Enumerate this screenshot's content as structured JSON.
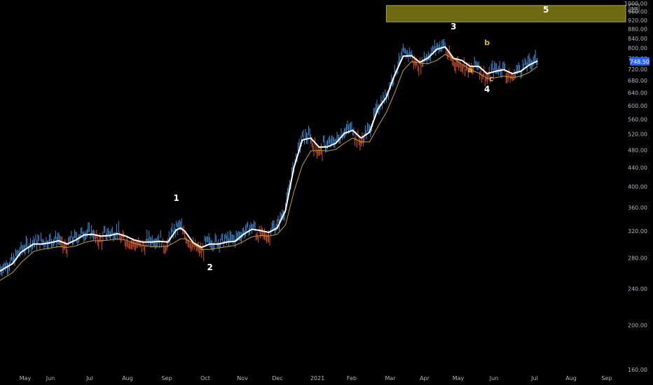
{
  "chart_data": {
    "type": "line",
    "title": "",
    "currency": "INR",
    "last_price": "748.50",
    "y_scale": "log",
    "ylim": [
      160,
      1000
    ],
    "yticks": [
      "1000.00",
      "960.00",
      "920.00",
      "880.00",
      "840.00",
      "800.00",
      "760.00",
      "720.00",
      "680.00",
      "640.00",
      "600.00",
      "560.00",
      "520.00",
      "480.00",
      "440.00",
      "400.00",
      "360.00",
      "320.00",
      "280.00",
      "240.00",
      "200.00",
      "160.00"
    ],
    "month_labels": [
      "May",
      "Jun",
      "Jul",
      "Aug",
      "Sep",
      "Oct",
      "Nov",
      "Dec",
      "2021",
      "Feb",
      "Mar",
      "Apr",
      "May",
      "Jun",
      "Jul",
      "Aug",
      "Sep"
    ],
    "grid": false,
    "series": [
      {
        "values": [
          [
            0,
            262
          ],
          [
            3,
            272
          ],
          [
            5,
            288
          ],
          [
            8,
            300
          ],
          [
            10,
            300
          ],
          [
            12,
            302
          ],
          [
            14,
            305
          ],
          [
            16,
            300
          ],
          [
            18,
            306
          ],
          [
            20,
            314
          ],
          [
            22,
            315
          ],
          [
            24,
            312
          ],
          [
            26,
            313
          ],
          [
            28,
            316
          ],
          [
            30,
            312
          ],
          [
            32,
            306
          ],
          [
            34,
            303
          ],
          [
            36,
            303
          ],
          [
            38,
            304
          ],
          [
            40,
            303
          ],
          [
            42,
            322
          ],
          [
            43,
            325
          ],
          [
            44,
            320
          ],
          [
            46,
            302
          ],
          [
            48,
            295
          ],
          [
            50,
            300
          ],
          [
            52,
            300
          ],
          [
            54,
            303
          ],
          [
            56,
            304
          ],
          [
            58,
            315
          ],
          [
            60,
            323
          ],
          [
            62,
            321
          ],
          [
            64,
            318
          ],
          [
            66,
            325
          ],
          [
            68,
            355
          ],
          [
            70,
            440
          ],
          [
            72,
            505
          ],
          [
            74,
            510
          ],
          [
            76,
            487
          ],
          [
            78,
            488
          ],
          [
            80,
            497
          ],
          [
            82,
            522
          ],
          [
            84,
            530
          ],
          [
            86,
            510
          ],
          [
            88,
            525
          ],
          [
            90,
            590
          ],
          [
            92,
            625
          ],
          [
            94,
            700
          ],
          [
            96,
            768
          ],
          [
            98,
            770
          ],
          [
            100,
            745
          ],
          [
            102,
            762
          ],
          [
            104,
            795
          ],
          [
            106,
            805
          ],
          [
            108,
            760
          ],
          [
            110,
            752
          ],
          [
            112,
            730
          ],
          [
            114,
            730
          ],
          [
            116,
            704
          ],
          [
            118,
            712
          ],
          [
            120,
            718
          ],
          [
            122,
            704
          ],
          [
            124,
            712
          ],
          [
            126,
            735
          ],
          [
            128,
            750
          ]
        ]
      },
      {
        "values": [
          [
            0,
            250
          ],
          [
            3,
            260
          ],
          [
            5,
            273
          ],
          [
            8,
            289
          ],
          [
            10,
            292
          ],
          [
            12,
            294
          ],
          [
            14,
            296
          ],
          [
            16,
            295
          ],
          [
            18,
            297
          ],
          [
            20,
            302
          ],
          [
            22,
            305
          ],
          [
            24,
            305
          ],
          [
            26,
            306
          ],
          [
            28,
            308
          ],
          [
            30,
            306
          ],
          [
            32,
            301
          ],
          [
            34,
            298
          ],
          [
            36,
            296
          ],
          [
            38,
            296
          ],
          [
            40,
            297
          ],
          [
            42,
            304
          ],
          [
            43,
            308
          ],
          [
            44,
            308
          ],
          [
            46,
            301
          ],
          [
            48,
            292
          ],
          [
            50,
            292
          ],
          [
            52,
            294
          ],
          [
            54,
            296
          ],
          [
            56,
            298
          ],
          [
            58,
            304
          ],
          [
            60,
            311
          ],
          [
            62,
            313
          ],
          [
            64,
            312
          ],
          [
            66,
            315
          ],
          [
            68,
            330
          ],
          [
            70,
            390
          ],
          [
            72,
            445
          ],
          [
            74,
            478
          ],
          [
            76,
            480
          ],
          [
            78,
            478
          ],
          [
            80,
            482
          ],
          [
            82,
            497
          ],
          [
            84,
            510
          ],
          [
            86,
            500
          ],
          [
            88,
            500
          ],
          [
            90,
            540
          ],
          [
            92,
            580
          ],
          [
            94,
            640
          ],
          [
            96,
            715
          ],
          [
            98,
            748
          ],
          [
            100,
            742
          ],
          [
            102,
            740
          ],
          [
            104,
            752
          ],
          [
            106,
            775
          ],
          [
            108,
            758
          ],
          [
            110,
            738
          ],
          [
            112,
            718
          ],
          [
            114,
            706
          ],
          [
            116,
            688
          ],
          [
            118,
            690
          ],
          [
            120,
            695
          ],
          [
            122,
            690
          ],
          [
            124,
            695
          ],
          [
            126,
            708
          ],
          [
            128,
            730
          ]
        ]
      }
    ],
    "annotations": [
      {
        "text": "1",
        "at": [
          42,
          372
        ],
        "color": "#ffffff"
      },
      {
        "text": "2",
        "at": [
          50,
          263
        ],
        "color": "#ffffff"
      },
      {
        "text": "3",
        "at": [
          108,
          878
        ],
        "color": "#ffffff"
      },
      {
        "text": "4",
        "at": [
          116,
          642
        ],
        "color": "#ffffff"
      },
      {
        "text": "5",
        "at": [
          130,
          955
        ],
        "color": "#ffffff"
      },
      {
        "text": "a",
        "at": [
          112,
          708
        ],
        "color": "#e0b34a"
      },
      {
        "text": "b",
        "at": [
          116,
          812
        ],
        "color": "#e0b34a"
      },
      {
        "text": "c",
        "at": [
          117,
          678
        ],
        "color": "#e0b34a"
      }
    ],
    "target_zone": {
      "x_range": [
        92,
        149
      ],
      "y_range": [
        912,
        990
      ],
      "color": "#6e6a12"
    }
  }
}
